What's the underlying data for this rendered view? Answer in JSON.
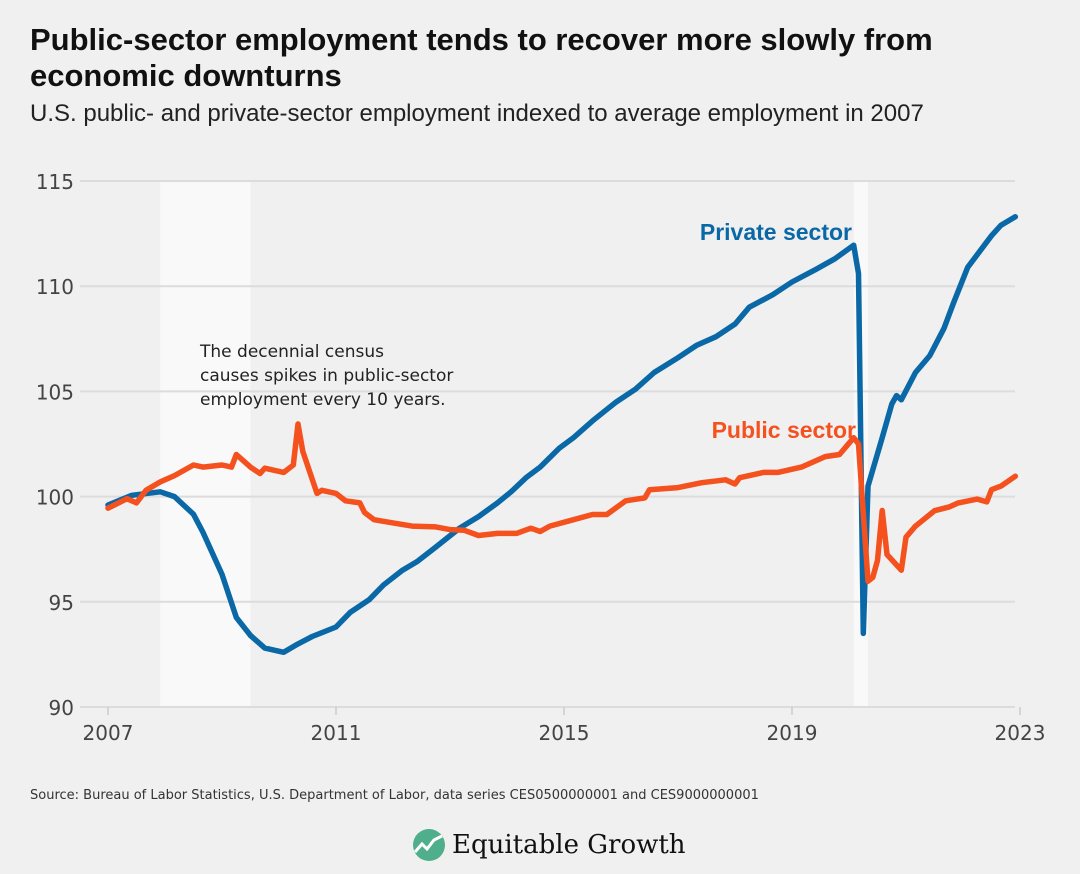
{
  "title": "Public-sector employment tends to recover more slowly from economic downturns",
  "subtitle": "U.S. public- and private-sector employment indexed to average employment in 2007",
  "source": "Source: Bureau of Labor Statistics, U.S. Department of Labor, data series CES0500000001 and CES9000000001",
  "logo": {
    "text": "Equitable Growth",
    "icon": "rising-chart-circle-icon",
    "color": "#4fae8c"
  },
  "chart_data": {
    "type": "line",
    "background": "#f0f0f0",
    "grid": true,
    "xlim": [
      "2007-01",
      "2023-01"
    ],
    "ylim": [
      90,
      115
    ],
    "xticks": [
      "2007",
      "2011",
      "2015",
      "2019",
      "2023"
    ],
    "yticks": [
      "90",
      "95",
      "100",
      "105",
      "110",
      "115"
    ],
    "shaded_periods": [
      {
        "start": "2007-12",
        "end": "2009-06"
      },
      {
        "start": "2020-02",
        "end": "2020-04"
      }
    ],
    "shade_color": "#f9f9f9",
    "annotation": [
      "The decennial census",
      "causes spikes in public-sector",
      "employment every 10 years."
    ],
    "series": [
      {
        "name": "Private sector",
        "color": "#0a68a6",
        "x": [
          "2007-01",
          "2007-06",
          "2007-12",
          "2008-03",
          "2008-07",
          "2008-09",
          "2009-01",
          "2009-04",
          "2009-07",
          "2009-10",
          "2010-02",
          "2010-05",
          "2010-08",
          "2011-01",
          "2011-04",
          "2011-08",
          "2011-11",
          "2012-03",
          "2012-06",
          "2012-10",
          "2013-03",
          "2013-07",
          "2013-11",
          "2014-02",
          "2014-05",
          "2014-08",
          "2014-12",
          "2015-03",
          "2015-07",
          "2015-12",
          "2016-04",
          "2016-08",
          "2017-01",
          "2017-05",
          "2017-09",
          "2018-01",
          "2018-04",
          "2018-09",
          "2019-01",
          "2019-06",
          "2019-10",
          "2020-02",
          "2020-03",
          "2020-04",
          "2020-05",
          "2020-08",
          "2020-10",
          "2020-11",
          "2020-12",
          "2021-03",
          "2021-06",
          "2021-09",
          "2021-11",
          "2022-02",
          "2022-07",
          "2022-09",
          "2022-12"
        ],
        "y": [
          99.6,
          100.06,
          100.23,
          100.0,
          99.16,
          98.3,
          96.3,
          94.26,
          93.4,
          92.8,
          92.6,
          93.0,
          93.35,
          93.8,
          94.5,
          95.1,
          95.8,
          96.5,
          96.9,
          97.6,
          98.5,
          99.05,
          99.7,
          100.25,
          100.9,
          101.4,
          102.3,
          102.8,
          103.6,
          104.5,
          105.1,
          105.9,
          106.6,
          107.2,
          107.6,
          108.2,
          109.0,
          109.6,
          110.2,
          110.8,
          111.3,
          111.95,
          110.6,
          93.5,
          100.5,
          102.8,
          104.4,
          104.8,
          104.6,
          105.9,
          106.7,
          108.0,
          109.2,
          110.9,
          112.4,
          112.9,
          113.3
        ]
      },
      {
        "name": "Public sector",
        "color": "#f4511e",
        "x": [
          "2007-01",
          "2007-05",
          "2007-07",
          "2007-09",
          "2007-12",
          "2008-03",
          "2008-07",
          "2008-09",
          "2009-01",
          "2009-03",
          "2009-04",
          "2009-07",
          "2009-09",
          "2009-10",
          "2010-02",
          "2010-04",
          "2010-05",
          "2010-06",
          "2010-09",
          "2010-10",
          "2011-01",
          "2011-03",
          "2011-06",
          "2011-07",
          "2011-09",
          "2012-01",
          "2012-05",
          "2012-10",
          "2013-01",
          "2013-04",
          "2013-07",
          "2013-11",
          "2014-03",
          "2014-06",
          "2014-08",
          "2014-10",
          "2015-03",
          "2015-07",
          "2015-10",
          "2016-02",
          "2016-06",
          "2016-07",
          "2017-01",
          "2017-06",
          "2017-11",
          "2018-01",
          "2018-02",
          "2018-07",
          "2018-10",
          "2019-03",
          "2019-08",
          "2019-11",
          "2020-02",
          "2020-03",
          "2020-05",
          "2020-06",
          "2020-07",
          "2020-08",
          "2020-09",
          "2020-12",
          "2021-01",
          "2021-03",
          "2021-07",
          "2021-10",
          "2021-12",
          "2022-04",
          "2022-06",
          "2022-07",
          "2022-09",
          "2022-12"
        ],
        "y": [
          99.45,
          99.9,
          99.7,
          100.3,
          100.7,
          101.0,
          101.5,
          101.4,
          101.5,
          101.4,
          102.0,
          101.4,
          101.1,
          101.35,
          101.15,
          101.5,
          103.45,
          102.15,
          100.15,
          100.3,
          100.15,
          99.8,
          99.7,
          99.25,
          98.9,
          98.75,
          98.6,
          98.56,
          98.43,
          98.4,
          98.15,
          98.25,
          98.25,
          98.5,
          98.34,
          98.6,
          98.9,
          99.15,
          99.15,
          99.8,
          99.94,
          100.33,
          100.43,
          100.66,
          100.8,
          100.6,
          100.9,
          101.15,
          101.15,
          101.4,
          101.9,
          102.0,
          102.8,
          102.5,
          95.98,
          96.16,
          96.97,
          99.34,
          97.25,
          96.5,
          98.07,
          98.6,
          99.33,
          99.5,
          99.7,
          99.88,
          99.75,
          100.33,
          100.5,
          100.97
        ]
      }
    ]
  }
}
